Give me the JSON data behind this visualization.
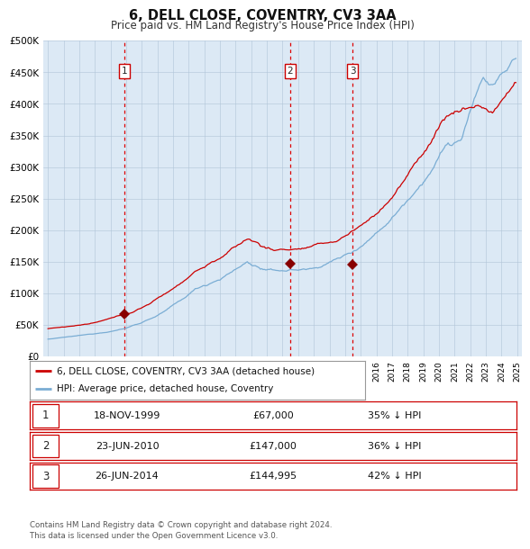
{
  "title": "6, DELL CLOSE, COVENTRY, CV3 3AA",
  "subtitle": "Price paid vs. HM Land Registry's House Price Index (HPI)",
  "background_color": "#dce9f5",
  "ylim": [
    0,
    500000
  ],
  "yticks": [
    0,
    50000,
    100000,
    150000,
    200000,
    250000,
    300000,
    350000,
    400000,
    450000,
    500000
  ],
  "xlim_start": 1994.7,
  "xlim_end": 2025.3,
  "sale_dates": [
    1999.89,
    2010.48,
    2014.48
  ],
  "sale_prices": [
    67000,
    147000,
    144995
  ],
  "sale_labels": [
    "1",
    "2",
    "3"
  ],
  "vline_color": "#dd0000",
  "sale_marker_color": "#880000",
  "red_line_color": "#cc0000",
  "blue_line_color": "#7aadd4",
  "legend_red_label": "6, DELL CLOSE, COVENTRY, CV3 3AA (detached house)",
  "legend_blue_label": "HPI: Average price, detached house, Coventry",
  "table_rows": [
    {
      "num": "1",
      "date": "18-NOV-1999",
      "price": "£67,000",
      "change": "35% ↓ HPI"
    },
    {
      "num": "2",
      "date": "23-JUN-2010",
      "price": "£147,000",
      "change": "36% ↓ HPI"
    },
    {
      "num": "3",
      "date": "26-JUN-2014",
      "price": "£144,995",
      "change": "42% ↓ HPI"
    }
  ],
  "footer": "Contains HM Land Registry data © Crown copyright and database right 2024.\nThis data is licensed under the Open Government Licence v3.0."
}
